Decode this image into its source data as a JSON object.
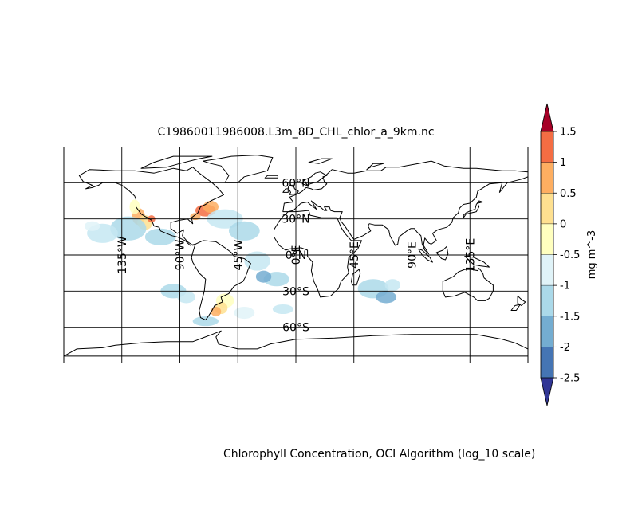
{
  "map": {
    "title": "C19860011986008.L3m_8D_CHL_chlor_a_9km.nc",
    "caption": "Chlorophyll Concentration, OCI Algorithm (log_10 scale)",
    "projection": "equirectangular",
    "lon_range": [
      -180,
      180
    ],
    "lat_range": [
      -90,
      90
    ],
    "gridlines": {
      "longitudes": [
        {
          "value": -135,
          "label": "135°W"
        },
        {
          "value": -90,
          "label": "90°W"
        },
        {
          "value": -45,
          "label": "45°W"
        },
        {
          "value": 0,
          "label": "0°E"
        },
        {
          "value": 45,
          "label": "45°E"
        },
        {
          "value": 90,
          "label": "90°E"
        },
        {
          "value": 135,
          "label": "135°E"
        }
      ],
      "latitudes": [
        {
          "value": 60,
          "label": "60°N"
        },
        {
          "value": 30,
          "label": "30°N"
        },
        {
          "value": 0,
          "label": "0°N"
        },
        {
          "value": -30,
          "label": "30°S"
        },
        {
          "value": -60,
          "label": "60°S"
        }
      ]
    },
    "coastline_color": "#000000",
    "data_patches": [
      {
        "lon": -122,
        "lat": 32,
        "rx": 5,
        "ry": 7,
        "color": "#fdae61"
      },
      {
        "lon": -117,
        "lat": 27,
        "rx": 6,
        "ry": 6,
        "color": "#fee090"
      },
      {
        "lon": -125,
        "lat": 40,
        "rx": 4,
        "ry": 6,
        "color": "#ffffbf"
      },
      {
        "lon": -130,
        "lat": 22,
        "rx": 14,
        "ry": 10,
        "color": "#abd9e9"
      },
      {
        "lon": -150,
        "lat": 18,
        "rx": 12,
        "ry": 8,
        "color": "#c6e7f2"
      },
      {
        "lon": -105,
        "lat": 15,
        "rx": 12,
        "ry": 7,
        "color": "#abd9e9"
      },
      {
        "lon": -70,
        "lat": 37,
        "rx": 8,
        "ry": 5,
        "color": "#f46d43"
      },
      {
        "lon": -66,
        "lat": 40,
        "rx": 6,
        "ry": 5,
        "color": "#fdae61"
      },
      {
        "lon": -55,
        "lat": 30,
        "rx": 14,
        "ry": 8,
        "color": "#c6e7f2"
      },
      {
        "lon": -40,
        "lat": 20,
        "rx": 12,
        "ry": 8,
        "color": "#abd9e9"
      },
      {
        "lon": -30,
        "lat": -5,
        "rx": 10,
        "ry": 8,
        "color": "#c6e7f2"
      },
      {
        "lon": -15,
        "lat": -20,
        "rx": 10,
        "ry": 6,
        "color": "#abd9e9"
      },
      {
        "lon": -25,
        "lat": -18,
        "rx": 6,
        "ry": 5,
        "color": "#74add1"
      },
      {
        "lon": -95,
        "lat": -30,
        "rx": 10,
        "ry": 6,
        "color": "#abd9e9"
      },
      {
        "lon": -85,
        "lat": -35,
        "rx": 7,
        "ry": 5,
        "color": "#c6e7f2"
      },
      {
        "lon": -55,
        "lat": -38,
        "rx": 7,
        "ry": 6,
        "color": "#ffffbf"
      },
      {
        "lon": -58,
        "lat": -44,
        "rx": 5,
        "ry": 5,
        "color": "#fee090"
      },
      {
        "lon": -62,
        "lat": -47,
        "rx": 4,
        "ry": 4,
        "color": "#fdae61"
      },
      {
        "lon": -40,
        "lat": -48,
        "rx": 8,
        "ry": 5,
        "color": "#e0f3f8"
      },
      {
        "lon": -70,
        "lat": -55,
        "rx": 10,
        "ry": 4,
        "color": "#abd9e9"
      },
      {
        "lon": -10,
        "lat": -45,
        "rx": 8,
        "ry": 4,
        "color": "#c6e7f2"
      },
      {
        "lon": 60,
        "lat": -28,
        "rx": 12,
        "ry": 8,
        "color": "#abd9e9"
      },
      {
        "lon": 70,
        "lat": -35,
        "rx": 8,
        "ry": 5,
        "color": "#74add1"
      },
      {
        "lon": 75,
        "lat": -25,
        "rx": 6,
        "ry": 5,
        "color": "#c6e7f2"
      },
      {
        "lon": -158,
        "lat": 24,
        "rx": 6,
        "ry": 4,
        "color": "#e0f3f8"
      },
      {
        "lon": -112,
        "lat": 30,
        "rx": 3,
        "ry": 3,
        "color": "#f46d43"
      },
      {
        "lon": -78,
        "lat": 32,
        "rx": 4,
        "ry": 3,
        "color": "#fdae61"
      }
    ]
  },
  "colorbar": {
    "label": "mg m^-3",
    "ticks": [
      "-2.5",
      "-2",
      "-1.5",
      "-1",
      "-0.5",
      "0",
      "0.5",
      "1",
      "1.5"
    ],
    "tick_values": [
      -2.5,
      -2,
      -1.5,
      -1,
      -0.5,
      0,
      0.5,
      1,
      1.5
    ],
    "colors": [
      "#4575b4",
      "#74add1",
      "#abd9e9",
      "#e0f3f8",
      "#ffffbf",
      "#fee090",
      "#fdae61",
      "#f46d43",
      "#d73027"
    ],
    "under_color": "#313695",
    "over_color": "#a50026",
    "extend": "both"
  }
}
